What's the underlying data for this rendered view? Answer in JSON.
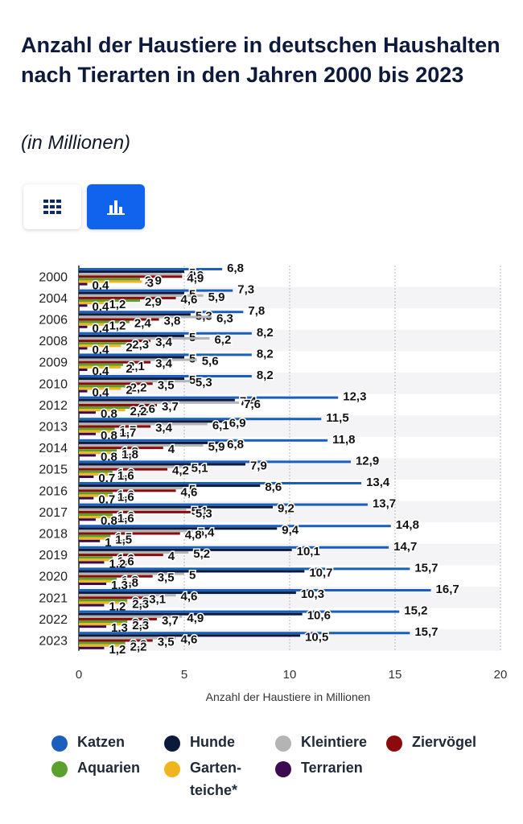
{
  "header": {
    "title": "Anzahl der Haustiere in deutschen Haushalten nach Tierarten in den Jahren 2000 bis 2023",
    "subtitle": "(in Millionen)"
  },
  "toggle": {
    "table_icon": "grid-icon",
    "chart_icon": "bar-chart-icon"
  },
  "chart_data": {
    "type": "bar",
    "orientation": "horizontal",
    "title": "Anzahl der Haustiere in deutschen Haushalten nach Tierarten in den Jahren 2000 bis 2023",
    "subtitle": "(in Millionen)",
    "xlabel": "Anzahl der Haustiere in Millionen",
    "ylabel": "",
    "xlim": [
      0,
      20
    ],
    "xticks": [
      0,
      5,
      10,
      15,
      20
    ],
    "grid": true,
    "legend_position": "bottom",
    "categories": [
      "2000",
      "2004",
      "2006",
      "2008",
      "2009",
      "2010",
      "2012",
      "2013",
      "2014",
      "2015",
      "2016",
      "2017",
      "2018",
      "2019",
      "2020",
      "2021",
      "2022",
      "2023"
    ],
    "series": [
      {
        "name": "Katzen",
        "color": "#1b5fbd",
        "values": [
          6.8,
          7.3,
          7.8,
          8.2,
          8.2,
          8.2,
          12.3,
          11.5,
          11.8,
          12.9,
          13.4,
          13.7,
          14.8,
          14.7,
          15.7,
          16.7,
          15.2,
          15.7
        ]
      },
      {
        "name": "Hunde",
        "color": "#0b1a3a",
        "values": [
          5,
          5,
          5.3,
          5,
          5,
          5,
          7.4,
          6.9,
          6.8,
          7.9,
          8.6,
          9.2,
          9.4,
          10.1,
          10.7,
          10.3,
          10.6,
          10.5
        ]
      },
      {
        "name": "Kleintiere",
        "color": "#b4b4b4",
        "values": [
          4.9,
          5.9,
          6.3,
          6.2,
          5.6,
          5.3,
          7.6,
          6.1,
          5.9,
          5.1,
          5,
          5.1,
          5.4,
          5.2,
          5,
          4.6,
          4.9,
          4.6
        ]
      },
      {
        "name": "Ziervögel",
        "color": "#8c0a0a",
        "values": [
          4.9,
          4.6,
          3.8,
          3.4,
          3.4,
          3.5,
          3.7,
          3.4,
          4,
          4.2,
          4.6,
          5.3,
          4.8,
          4,
          3.5,
          3.1,
          3.7,
          3.5
        ]
      },
      {
        "name": "Aquarien",
        "color": "#5aa02c",
        "values": [
          2.9,
          2.9,
          2.4,
          2.3,
          2.1,
          2.2,
          2.6,
          1.7,
          1.8,
          1.6,
          1.6,
          1.6,
          1.5,
          1.6,
          1.8,
          2.3,
          2.3,
          2.2
        ]
      },
      {
        "name": "Garten- teiche*",
        "color": "#f0b41e",
        "values": [
          3,
          1.2,
          1.2,
          2,
          2,
          2,
          2.2,
          1.7,
          1.8,
          1.6,
          1.6,
          1.6,
          1.5,
          1.6,
          1.8,
          2.3,
          2.3,
          2.2
        ]
      },
      {
        "name": "Terrarien",
        "color": "#3c0a50",
        "values": [
          0.4,
          0.4,
          0.4,
          0.4,
          0.4,
          0.4,
          0.8,
          0.8,
          0.8,
          0.7,
          0.7,
          0.8,
          1,
          1.2,
          1.3,
          1.2,
          1.3,
          1.2
        ]
      }
    ]
  }
}
